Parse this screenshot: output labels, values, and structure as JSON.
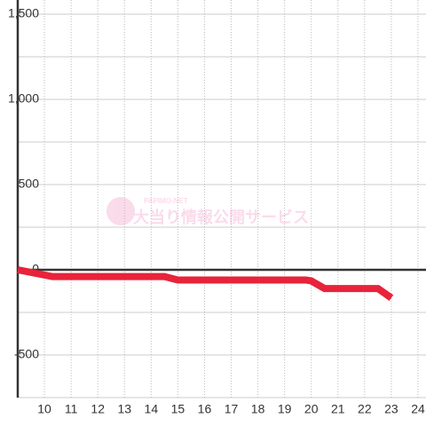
{
  "chart_data": {
    "type": "line",
    "x": [
      9,
      10.3,
      14.5,
      15,
      19.8,
      20,
      20.5,
      22.5,
      23
    ],
    "series": [
      {
        "color": "#e8233a",
        "values": [
          0,
          -40,
          -40,
          -60,
          -60,
          -65,
          -110,
          -110,
          -165
        ]
      }
    ],
    "xlim": [
      9,
      24.3
    ],
    "xticks": [
      10,
      11,
      12,
      13,
      14,
      15,
      16,
      17,
      18,
      19,
      20,
      21,
      22,
      23,
      24
    ],
    "ylim": [
      -750,
      1500
    ],
    "yticks": [
      {
        "value": 1500,
        "label": "1,500"
      },
      {
        "value": 1000,
        "label": "1,000"
      },
      500,
      0,
      -500
    ],
    "yminor": [
      1250,
      750,
      250,
      -250,
      -750
    ],
    "grid": true,
    "watermark": {
      "brand": "PAPIMO-NET",
      "text": "大当り情報公開サービス"
    }
  }
}
